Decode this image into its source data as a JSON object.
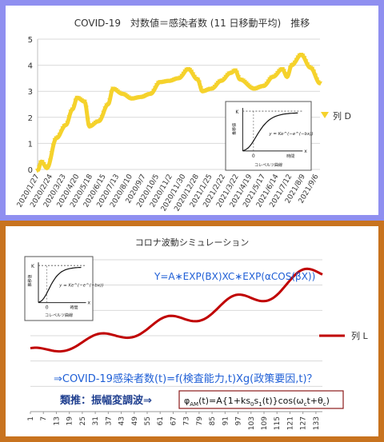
{
  "chart_data": [
    {
      "type": "line",
      "title": "COVID-19　対数値＝感染者数 (11 日移動平均)　推移",
      "ylim": [
        0,
        5
      ],
      "yticks": [
        "0",
        "1",
        "2",
        "3",
        "4",
        "5"
      ],
      "grid": "horizontal",
      "legend": "right",
      "series": [
        {
          "name": "列 D",
          "color": "#f5d22c",
          "marker": "triangle-down",
          "x": [
            0,
            0.4,
            1,
            2,
            3,
            3.7,
            4.2,
            5,
            5.5,
            6.5,
            7.5,
            8,
            9,
            10,
            11,
            12,
            13,
            14,
            15,
            16,
            17,
            17.5,
            18.5,
            19.5,
            20.5,
            21,
            21.5,
            23,
            24,
            25,
            26,
            26.5,
            27,
            28,
            29,
            30
          ],
          "values": [
            -0.05,
            0.3,
            0.05,
            1.2,
            1.7,
            2.3,
            2.75,
            2.6,
            1.65,
            1.85,
            2.5,
            3.1,
            2.9,
            2.72,
            2.78,
            2.9,
            3.35,
            3.4,
            3.5,
            3.85,
            3.45,
            3.0,
            3.1,
            3.4,
            3.7,
            3.8,
            3.45,
            3.1,
            3.2,
            3.55,
            3.85,
            3.55,
            4.0,
            4.4,
            3.9,
            3.3
          ]
        }
      ],
      "categories": [
        "2020/1/27",
        "2020/2/24",
        "2020/3/23",
        "2020/4/20",
        "2020/5/18",
        "2020/6/15",
        "2020/7/13",
        "2020/8/10",
        "2020/9/7",
        "2020/10/5",
        "2020/11/2",
        "2020/11/30",
        "2020/12/28",
        "2021/1/25",
        "2021/2/22",
        "2021/3/22",
        "2021/4/19",
        "2021/5/17",
        "2021/6/14",
        "2021/7/12",
        "2021/8/9",
        "2021/9/6"
      ]
    },
    {
      "type": "line",
      "title": "コロナ波動シミュレーション",
      "ylim": [
        0,
        2.6
      ],
      "grid": "horizontal",
      "legend": "right",
      "series": [
        {
          "name": "列 L",
          "color": "#c00000"
        }
      ],
      "categories": [
        "1",
        "7",
        "13",
        "19",
        "25",
        "31",
        "37",
        "43",
        "49",
        "55",
        "61",
        "67",
        "73",
        "79",
        "85",
        "91",
        "97",
        "103",
        "109",
        "115",
        "121",
        "127",
        "133"
      ]
    }
  ],
  "inset": {
    "y_axis_label": "推移値",
    "x_axis_label": "コレペルツ曲線",
    "time_label": "時間",
    "k_label": "K",
    "x_label": "x",
    "zero_label": "0",
    "formula": "y = Ke^(−e^(−bx))"
  },
  "annotations": {
    "formula_main": "Y=A∗EXP(BX)XC∗EXP(αCOS(βX))",
    "question": "⇒COVID-19感染者数(t)=f(検査能力,t)Xg(政策要因,t)？",
    "ruijiku": "類推：振幅変調波⇒",
    "am_formula": "φAM(t)=A{1+ks0s1(t)}cos(ωct+θc)"
  },
  "colors": {
    "top_frame": "#8f8ff0",
    "bottom_frame": "#c8731f",
    "formula_blue": "#1f5fd6",
    "question_blue": "#1f5fd6",
    "ruijiku_blue": "#1f3f8f",
    "box_border": "#8b1a1a"
  }
}
